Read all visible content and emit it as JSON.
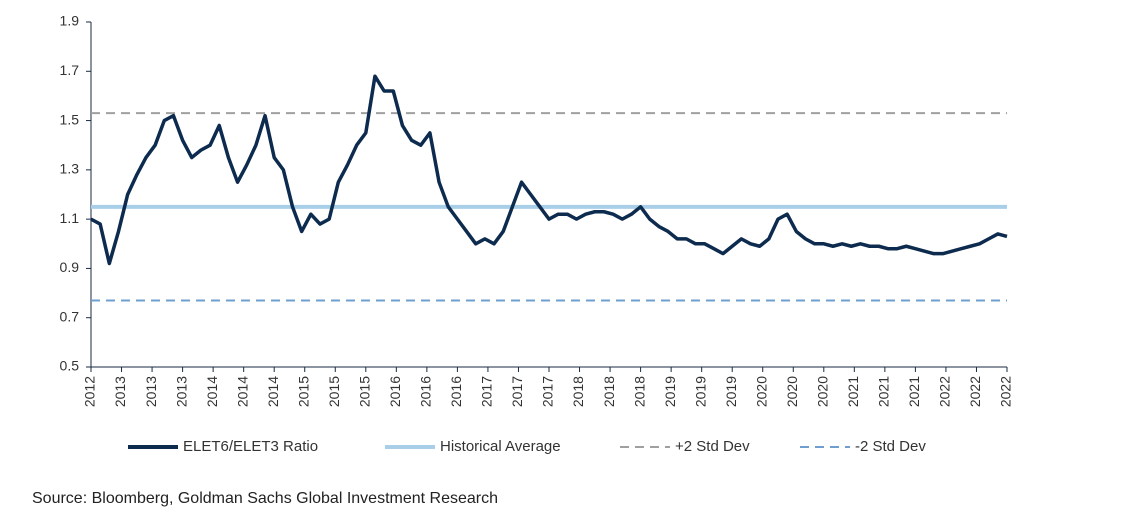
{
  "chart_data": {
    "type": "line",
    "source": "Source: Bloomberg, Goldman Sachs Global Investment Research",
    "x": [
      2012.75,
      2012.85,
      2012.95,
      2013.05,
      2013.15,
      2013.25,
      2013.35,
      2013.45,
      2013.55,
      2013.65,
      2013.75,
      2013.85,
      2013.95,
      2014.05,
      2014.15,
      2014.25,
      2014.35,
      2014.45,
      2014.55,
      2014.65,
      2014.75,
      2014.85,
      2014.95,
      2015.05,
      2015.15,
      2015.25,
      2015.35,
      2015.45,
      2015.55,
      2015.65,
      2015.75,
      2015.85,
      2015.95,
      2016.05,
      2016.15,
      2016.25,
      2016.35,
      2016.45,
      2016.55,
      2016.65,
      2016.75,
      2016.85,
      2016.95,
      2017.05,
      2017.15,
      2017.25,
      2017.35,
      2017.45,
      2017.55,
      2017.65,
      2017.75,
      2017.85,
      2017.95,
      2018.05,
      2018.15,
      2018.25,
      2018.35,
      2018.45,
      2018.55,
      2018.65,
      2018.75,
      2018.85,
      2018.95,
      2019.05,
      2019.15,
      2019.25,
      2019.35,
      2019.45,
      2019.55,
      2019.65,
      2019.75,
      2019.85,
      2019.95,
      2020.05,
      2020.15,
      2020.25,
      2020.35,
      2020.45,
      2020.55,
      2020.65,
      2020.75,
      2020.85,
      2020.95,
      2021.05,
      2021.15,
      2021.25,
      2021.35,
      2021.45,
      2021.55,
      2021.65,
      2021.75,
      2021.85,
      2021.95,
      2022.05,
      2022.15,
      2022.25,
      2022.35,
      2022.45,
      2022.55,
      2022.65,
      2022.75
    ],
    "series": [
      {
        "name": "ELET6/ELET3 Ratio",
        "color": "#0d2b4e",
        "values": [
          1.1,
          1.08,
          0.92,
          1.05,
          1.2,
          1.28,
          1.35,
          1.4,
          1.5,
          1.52,
          1.42,
          1.35,
          1.38,
          1.4,
          1.48,
          1.35,
          1.25,
          1.32,
          1.4,
          1.52,
          1.35,
          1.3,
          1.15,
          1.05,
          1.12,
          1.08,
          1.1,
          1.25,
          1.32,
          1.4,
          1.45,
          1.68,
          1.62,
          1.62,
          1.48,
          1.42,
          1.4,
          1.45,
          1.25,
          1.15,
          1.1,
          1.05,
          1.0,
          1.02,
          1.0,
          1.05,
          1.15,
          1.25,
          1.2,
          1.15,
          1.1,
          1.12,
          1.12,
          1.1,
          1.12,
          1.13,
          1.13,
          1.12,
          1.1,
          1.12,
          1.15,
          1.1,
          1.07,
          1.05,
          1.02,
          1.02,
          1.0,
          1.0,
          0.98,
          0.96,
          0.99,
          1.02,
          1.0,
          0.99,
          1.02,
          1.1,
          1.12,
          1.05,
          1.02,
          1.0,
          1.0,
          0.99,
          1.0,
          0.99,
          1.0,
          0.99,
          0.99,
          0.98,
          0.98,
          0.99,
          0.98,
          0.97,
          0.96,
          0.96,
          0.97,
          0.98,
          0.99,
          1.0,
          1.02,
          1.04,
          1.03
        ]
      }
    ],
    "reference_lines": [
      {
        "name": "Historical Average",
        "value": 1.15,
        "color": "#a9cfe8",
        "style": "solid"
      },
      {
        "name": "+2 Std Dev",
        "value": 1.53,
        "color": "#a0a0a0",
        "style": "dashed"
      },
      {
        "name": "-2 Std Dev",
        "value": 0.77,
        "color": "#6f9fcf",
        "style": "dashed"
      }
    ],
    "xlim": [
      2012.75,
      2022.75
    ],
    "xticks": [
      {
        "value": 2012.75,
        "label": "2012"
      },
      {
        "value": 2013.0833,
        "label": "2013"
      },
      {
        "value": 2013.4167,
        "label": "2013"
      },
      {
        "value": 2013.75,
        "label": "2013"
      },
      {
        "value": 2014.0833,
        "label": "2014"
      },
      {
        "value": 2014.4167,
        "label": "2014"
      },
      {
        "value": 2014.75,
        "label": "2014"
      },
      {
        "value": 2015.0833,
        "label": "2015"
      },
      {
        "value": 2015.4167,
        "label": "2015"
      },
      {
        "value": 2015.75,
        "label": "2015"
      },
      {
        "value": 2016.0833,
        "label": "2016"
      },
      {
        "value": 2016.4167,
        "label": "2016"
      },
      {
        "value": 2016.75,
        "label": "2016"
      },
      {
        "value": 2017.0833,
        "label": "2017"
      },
      {
        "value": 2017.4167,
        "label": "2017"
      },
      {
        "value": 2017.75,
        "label": "2017"
      },
      {
        "value": 2018.0833,
        "label": "2018"
      },
      {
        "value": 2018.4167,
        "label": "2018"
      },
      {
        "value": 2018.75,
        "label": "2018"
      },
      {
        "value": 2019.0833,
        "label": "2019"
      },
      {
        "value": 2019.4167,
        "label": "2019"
      },
      {
        "value": 2019.75,
        "label": "2019"
      },
      {
        "value": 2020.0833,
        "label": "2020"
      },
      {
        "value": 2020.4167,
        "label": "2020"
      },
      {
        "value": 2020.75,
        "label": "2020"
      },
      {
        "value": 2021.0833,
        "label": "2021"
      },
      {
        "value": 2021.4167,
        "label": "2021"
      },
      {
        "value": 2021.75,
        "label": "2021"
      },
      {
        "value": 2022.0833,
        "label": "2022"
      },
      {
        "value": 2022.4167,
        "label": "2022"
      },
      {
        "value": 2022.75,
        "label": "2022"
      }
    ],
    "ylim": [
      0.5,
      1.9
    ],
    "yticks": [
      0.5,
      0.7,
      0.9,
      1.1,
      1.3,
      1.5,
      1.7,
      1.9
    ],
    "grid": false
  }
}
